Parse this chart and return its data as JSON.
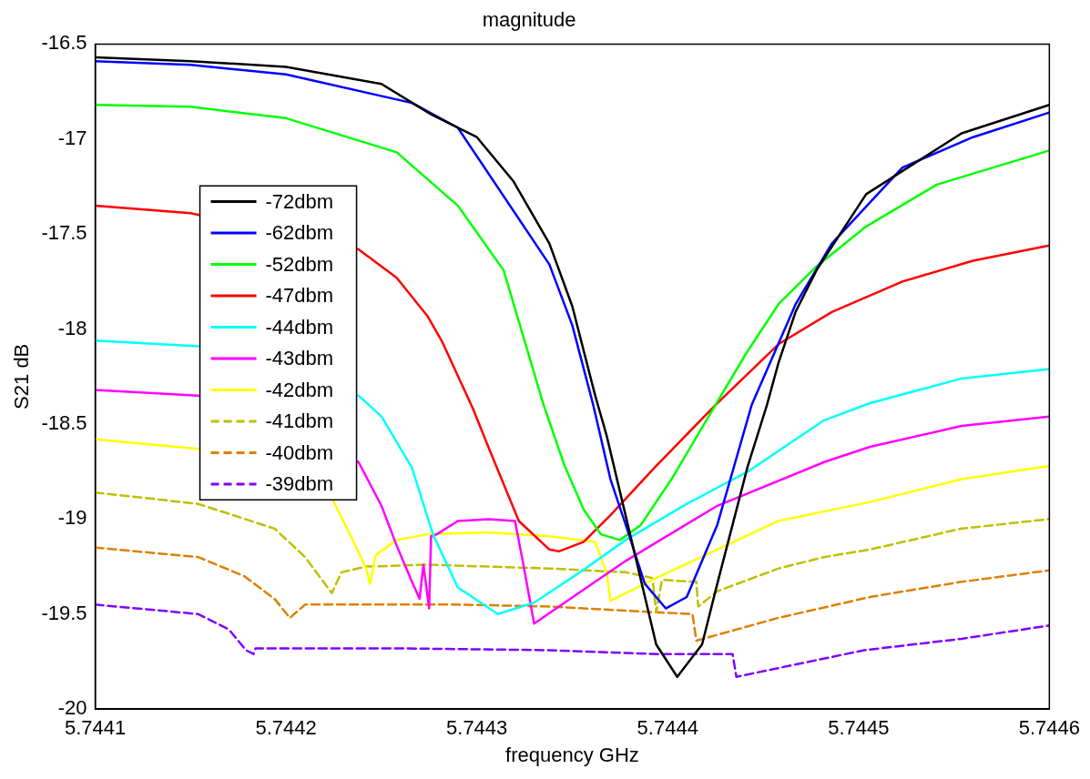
{
  "chart_data": {
    "type": "line",
    "title": "magnitude",
    "xlabel": "frequency GHz",
    "ylabel": "S21 dB",
    "xlim": [
      5.7441,
      5.7446
    ],
    "ylim": [
      -20,
      -16.5
    ],
    "xticks": [
      5.7441,
      5.7442,
      5.7443,
      5.7444,
      5.7445,
      5.7446
    ],
    "yticks": [
      -20,
      -19.5,
      -19,
      -18.5,
      -18,
      -17.5,
      -17,
      -16.5
    ],
    "legend": "left",
    "series": [
      {
        "name": "-72dbm",
        "color": "#000000",
        "line_style": "solid",
        "x": [
          5.7441,
          5.74415,
          5.7442,
          5.74425,
          5.744276,
          5.7443,
          5.744319,
          5.744338,
          5.74435,
          5.744362,
          5.744368,
          5.744381,
          5.744394,
          5.744405,
          5.744418,
          5.744426,
          5.744442,
          5.744452,
          5.744458,
          5.744467,
          5.744478,
          5.744504,
          5.744554,
          5.7446
        ],
        "values": [
          -16.57,
          -16.59,
          -16.62,
          -16.71,
          -16.87,
          -16.99,
          -17.22,
          -17.55,
          -17.88,
          -18.35,
          -18.56,
          -19.11,
          -19.66,
          -19.83,
          -19.66,
          -19.34,
          -18.72,
          -18.4,
          -18.18,
          -17.91,
          -17.69,
          -17.29,
          -16.97,
          -16.82
        ]
      },
      {
        "name": "-62dbm",
        "color": "#0000ff",
        "line_style": "solid",
        "x": [
          5.7441,
          5.74415,
          5.7442,
          5.744266,
          5.74429,
          5.744338,
          5.74435,
          5.744361,
          5.74437,
          5.744378,
          5.744388,
          5.744399,
          5.74441,
          5.744426,
          5.744444,
          5.744467,
          5.744486,
          5.744523,
          5.74456,
          5.7446
        ],
        "values": [
          -16.59,
          -16.61,
          -16.66,
          -16.81,
          -16.94,
          -17.66,
          -17.98,
          -18.4,
          -18.79,
          -19.03,
          -19.34,
          -19.47,
          -19.41,
          -19.03,
          -18.4,
          -17.87,
          -17.55,
          -17.15,
          -16.99,
          -16.86
        ]
      },
      {
        "name": "-52dbm",
        "color": "#00ff00",
        "line_style": "solid",
        "x": [
          5.7441,
          5.74415,
          5.7442,
          5.744258,
          5.74429,
          5.744314,
          5.744335,
          5.744346,
          5.744356,
          5.744365,
          5.744375,
          5.744386,
          5.744402,
          5.744425,
          5.744441,
          5.744458,
          5.744478,
          5.744504,
          5.744541,
          5.7446
        ],
        "values": [
          -16.82,
          -16.83,
          -16.89,
          -17.07,
          -17.35,
          -17.69,
          -18.4,
          -18.72,
          -18.95,
          -19.08,
          -19.11,
          -19.03,
          -18.79,
          -18.4,
          -18.13,
          -17.87,
          -17.67,
          -17.46,
          -17.24,
          -17.06
        ]
      },
      {
        "name": "-47dbm",
        "color": "#ff0000",
        "line_style": "solid",
        "x": [
          5.7441,
          5.74415,
          5.744238,
          5.744258,
          5.744274,
          5.744282,
          5.744298,
          5.744306,
          5.744322,
          5.744338,
          5.744343,
          5.744356,
          5.74437,
          5.744394,
          5.744425,
          5.744458,
          5.744486,
          5.744523,
          5.74456,
          5.7446
        ],
        "values": [
          -17.35,
          -17.39,
          -17.58,
          -17.73,
          -17.93,
          -18.07,
          -18.42,
          -18.62,
          -19.01,
          -19.16,
          -19.17,
          -19.12,
          -18.98,
          -18.72,
          -18.4,
          -18.08,
          -17.91,
          -17.75,
          -17.64,
          -17.56
        ]
      },
      {
        "name": "-44dbm",
        "color": "#00ffff",
        "line_style": "solid",
        "x": [
          5.7441,
          5.744117,
          5.744154,
          5.744238,
          5.74425,
          5.744266,
          5.744277,
          5.74429,
          5.744311,
          5.74433,
          5.744354,
          5.744378,
          5.74441,
          5.744442,
          5.744482,
          5.744506,
          5.744554,
          5.7446
        ],
        "values": [
          -18.06,
          -18.07,
          -18.09,
          -18.35,
          -18.46,
          -18.73,
          -19.08,
          -19.36,
          -19.5,
          -19.44,
          -19.28,
          -19.11,
          -18.92,
          -18.75,
          -18.48,
          -18.39,
          -18.26,
          -18.21
        ]
      },
      {
        "name": "-43dbm",
        "color": "#ff00ff",
        "line_style": "solid",
        "x": [
          5.7441,
          5.744154,
          5.744238,
          5.74425,
          5.744258,
          5.744266,
          5.74427,
          5.744272,
          5.744275,
          5.744276,
          5.744279,
          5.74429,
          5.744306,
          5.74432,
          5.744324,
          5.74433,
          5.744378,
          5.744426,
          5.744482,
          5.744506,
          5.744554,
          5.7446
        ],
        "values": [
          -18.32,
          -18.35,
          -18.7,
          -18.93,
          -19.14,
          -19.33,
          -19.42,
          -19.24,
          -19.47,
          -19.09,
          -19.08,
          -19.01,
          -19.0,
          -19.01,
          -19.22,
          -19.55,
          -19.22,
          -18.93,
          -18.7,
          -18.62,
          -18.51,
          -18.46
        ]
      },
      {
        "name": "-42dbm",
        "color": "#ffff00",
        "line_style": "solid",
        "x": [
          5.7441,
          5.744154,
          5.744224,
          5.744234,
          5.744242,
          5.744244,
          5.744247,
          5.744258,
          5.744274,
          5.744306,
          5.744338,
          5.744362,
          5.744368,
          5.74437,
          5.744378,
          5.744394,
          5.744426,
          5.744458,
          5.744506,
          5.744554,
          5.7446
        ],
        "values": [
          -18.58,
          -18.63,
          -18.89,
          -19.09,
          -19.26,
          -19.34,
          -19.19,
          -19.11,
          -19.08,
          -19.07,
          -19.09,
          -19.12,
          -19.28,
          -19.43,
          -19.39,
          -19.31,
          -19.16,
          -19.01,
          -18.91,
          -18.79,
          -18.72
        ]
      },
      {
        "name": "-41dbm",
        "color": "#bfbf00",
        "line_style": "dashed",
        "x": [
          5.7441,
          5.744154,
          5.744194,
          5.74421,
          5.744224,
          5.744229,
          5.744242,
          5.744274,
          5.744338,
          5.744378,
          5.744392,
          5.744394,
          5.744397,
          5.744415,
          5.744416,
          5.744426,
          5.744458,
          5.744482,
          5.744506,
          5.744554,
          5.7446
        ],
        "values": [
          -18.86,
          -18.92,
          -19.05,
          -19.2,
          -19.39,
          -19.28,
          -19.25,
          -19.24,
          -19.26,
          -19.28,
          -19.31,
          -19.49,
          -19.32,
          -19.33,
          -19.46,
          -19.38,
          -19.26,
          -19.2,
          -19.16,
          -19.05,
          -19.0
        ]
      },
      {
        "name": "-40dbm",
        "color": "#dd8000",
        "line_style": "dashed",
        "x": [
          5.7441,
          5.744154,
          5.744178,
          5.744194,
          5.744202,
          5.74421,
          5.744226,
          5.74429,
          5.744338,
          5.744394,
          5.744413,
          5.744415,
          5.744458,
          5.744506,
          5.744554,
          5.7446
        ],
        "values": [
          -19.15,
          -19.2,
          -19.3,
          -19.42,
          -19.52,
          -19.45,
          -19.45,
          -19.45,
          -19.46,
          -19.49,
          -19.5,
          -19.64,
          -19.52,
          -19.41,
          -19.33,
          -19.27
        ]
      },
      {
        "name": "-39dbm",
        "color": "#7f00ff",
        "line_style": "dashed",
        "x": [
          5.7441,
          5.744154,
          5.74417,
          5.744179,
          5.744183,
          5.744184,
          5.744258,
          5.744338,
          5.744394,
          5.744434,
          5.744436,
          5.744503,
          5.744554,
          5.7446
        ],
        "values": [
          -19.45,
          -19.5,
          -19.58,
          -19.69,
          -19.71,
          -19.68,
          -19.68,
          -19.69,
          -19.71,
          -19.71,
          -19.83,
          -19.69,
          -19.63,
          -19.56
        ]
      }
    ]
  }
}
